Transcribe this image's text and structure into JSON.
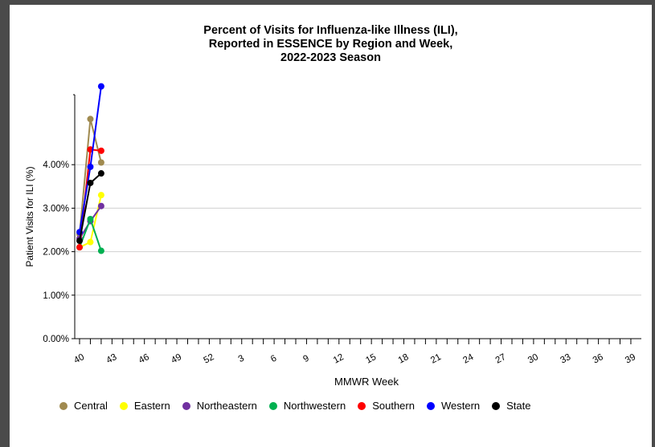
{
  "chart_data": {
    "type": "line",
    "title": [
      "Percent of Visits for Influenza-like Illness (ILI),",
      "Reported in ESSENCE by Region and Week,",
      "2022-2023 Season"
    ],
    "xlabel": "MMWR Week",
    "ylabel": "Patient Visits for ILI (%)",
    "x_ticks": [
      "40",
      "43",
      "46",
      "49",
      "52",
      "3",
      "6",
      "9",
      "12",
      "15",
      "18",
      "21",
      "24",
      "27",
      "30",
      "33",
      "36",
      "39"
    ],
    "y_ticks": [
      "0.00%",
      "1.00%",
      "2.00%",
      "3.00%",
      "4.00%"
    ],
    "ylim": [
      0,
      5.8
    ],
    "grid": true,
    "legend_position": "bottom",
    "x": [
      40,
      41,
      42
    ],
    "series": [
      {
        "name": "Central",
        "color": "#a08a4f",
        "values": [
          2.4,
          5.05,
          4.05
        ]
      },
      {
        "name": "Eastern",
        "color": "#ffff00",
        "values": [
          2.1,
          2.22,
          3.3
        ]
      },
      {
        "name": "Northeastern",
        "color": "#7030a0",
        "values": [
          2.3,
          2.7,
          3.05
        ]
      },
      {
        "name": "Northwestern",
        "color": "#00b050",
        "values": [
          2.1,
          2.75,
          2.02
        ]
      },
      {
        "name": "Southern",
        "color": "#ff0000",
        "values": [
          2.1,
          4.35,
          4.32
        ]
      },
      {
        "name": "Western",
        "color": "#0000ff",
        "values": [
          2.45,
          3.95,
          5.8
        ]
      },
      {
        "name": "State",
        "color": "#000000",
        "values": [
          2.25,
          3.58,
          3.8
        ]
      }
    ]
  }
}
